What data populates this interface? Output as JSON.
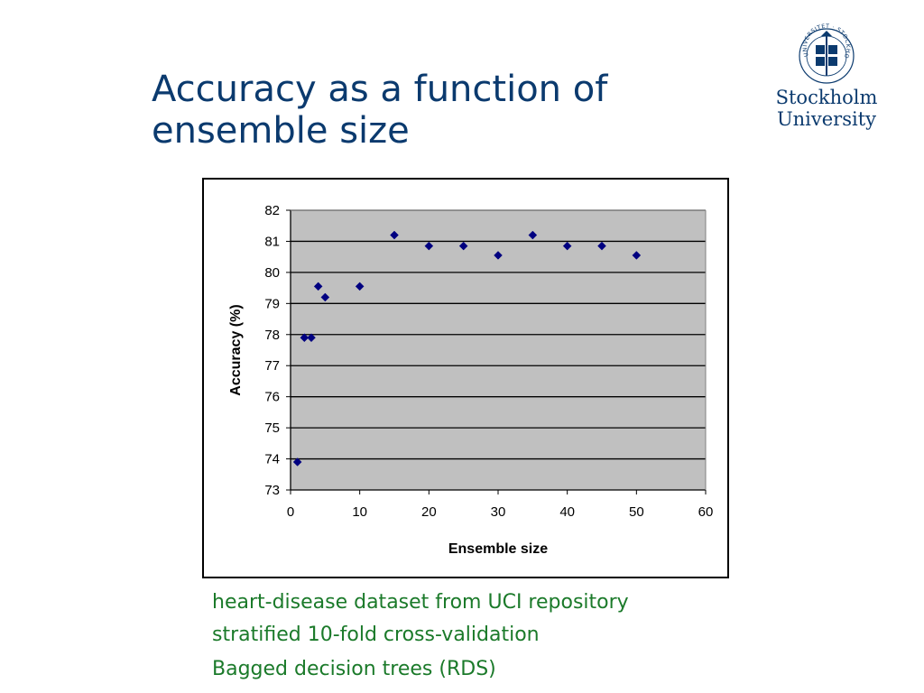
{
  "slide": {
    "title_lines": [
      "Accuracy as a function of",
      "ensemble size"
    ],
    "notes": [
      "heart-disease dataset from UCI repository",
      "stratified 10-fold cross-validation",
      "Bagged decision trees (RDS)"
    ],
    "logo": {
      "name_line1": "Stockholm",
      "name_line2": "University",
      "seal_text": "UNIVERSITET · STOCKHOLMS"
    }
  },
  "colors": {
    "title": "#0b3a6e",
    "notes": "#1b7a2a",
    "plot_area": "#c0c0c0",
    "marker": "#000080"
  },
  "chart_data": {
    "type": "scatter",
    "title": "",
    "xlabel": "Ensemble size",
    "ylabel": "Accuracy (%)",
    "xlim": [
      0,
      60
    ],
    "ylim": [
      73,
      82
    ],
    "xticks": [
      0,
      10,
      20,
      30,
      40,
      50,
      60
    ],
    "yticks": [
      73,
      74,
      75,
      76,
      77,
      78,
      79,
      80,
      81,
      82
    ],
    "grid": "horizontal",
    "legend": "none",
    "marker": "diamond",
    "x": [
      1,
      2,
      3,
      4,
      5,
      10,
      15,
      20,
      25,
      30,
      35,
      40,
      45,
      50
    ],
    "y": [
      73.9,
      77.9,
      77.9,
      79.55,
      79.2,
      79.55,
      81.2,
      80.85,
      80.85,
      80.55,
      81.2,
      80.85,
      80.85,
      80.55
    ]
  }
}
